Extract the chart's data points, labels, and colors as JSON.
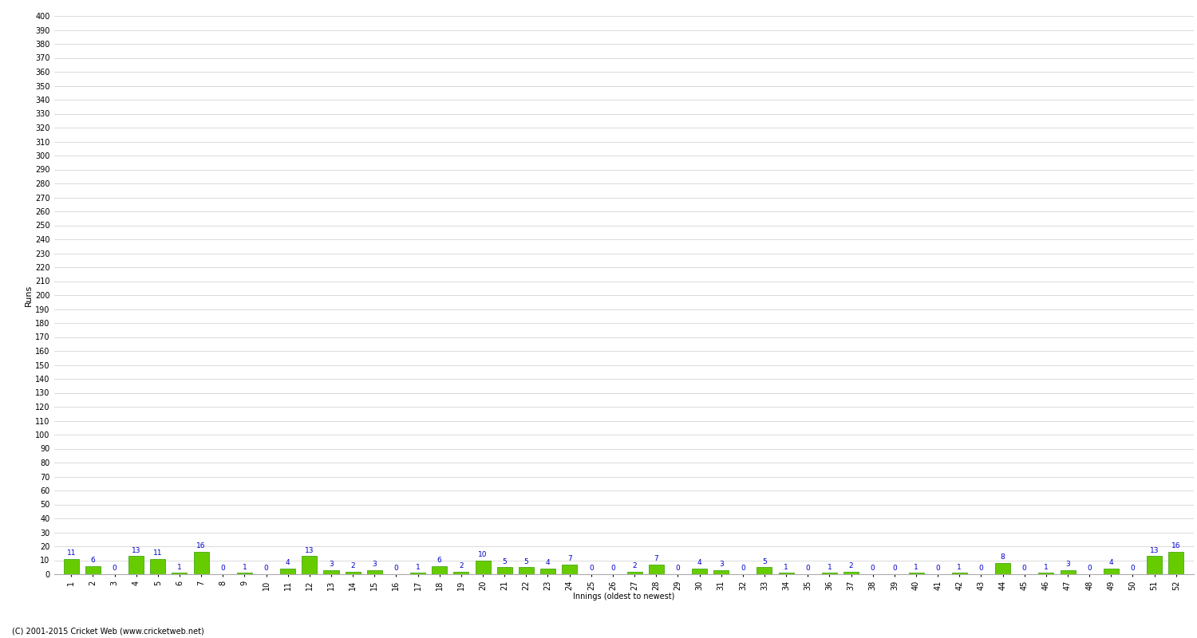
{
  "values": [
    11,
    6,
    0,
    13,
    11,
    1,
    16,
    0,
    1,
    0,
    4,
    13,
    3,
    2,
    3,
    0,
    1,
    6,
    2,
    10,
    5,
    5,
    4,
    7,
    0,
    0,
    2,
    7,
    0,
    4,
    3,
    0,
    5,
    1,
    0,
    1,
    2,
    0,
    0,
    1,
    0,
    1,
    0,
    8,
    0,
    1,
    3,
    0,
    4,
    0,
    13,
    16
  ],
  "labels": [
    "1",
    "2",
    "3",
    "4",
    "5",
    "6",
    "7",
    "8",
    "9",
    "10",
    "11",
    "12",
    "13",
    "14",
    "15",
    "16",
    "17",
    "18",
    "19",
    "20",
    "21",
    "22",
    "23",
    "24",
    "25",
    "26",
    "27",
    "28",
    "29",
    "30",
    "31",
    "32",
    "33",
    "34",
    "35",
    "36",
    "37",
    "38",
    "39",
    "40",
    "41",
    "42",
    "43",
    "44",
    "45",
    "46",
    "47",
    "48",
    "49",
    "50",
    "51",
    "52"
  ],
  "bar_color": "#66cc00",
  "bar_edge_color": "#339900",
  "text_color": "#0000cc",
  "ylabel": "Runs",
  "xlabel": "Innings (oldest to newest)",
  "ylim": [
    0,
    400
  ],
  "yticks": [
    0,
    10,
    20,
    30,
    40,
    50,
    60,
    70,
    80,
    90,
    100,
    110,
    120,
    130,
    140,
    150,
    160,
    170,
    180,
    190,
    200,
    210,
    220,
    230,
    240,
    250,
    260,
    270,
    280,
    290,
    300,
    310,
    320,
    330,
    340,
    350,
    360,
    370,
    380,
    390,
    400
  ],
  "grid_color": "#cccccc",
  "bg_color": "#ffffff",
  "footer": "(C) 2001-2015 Cricket Web (www.cricketweb.net)",
  "axis_fontsize": 7,
  "label_fontsize": 6.5,
  "footer_fontsize": 7,
  "ylabel_fontsize": 8
}
